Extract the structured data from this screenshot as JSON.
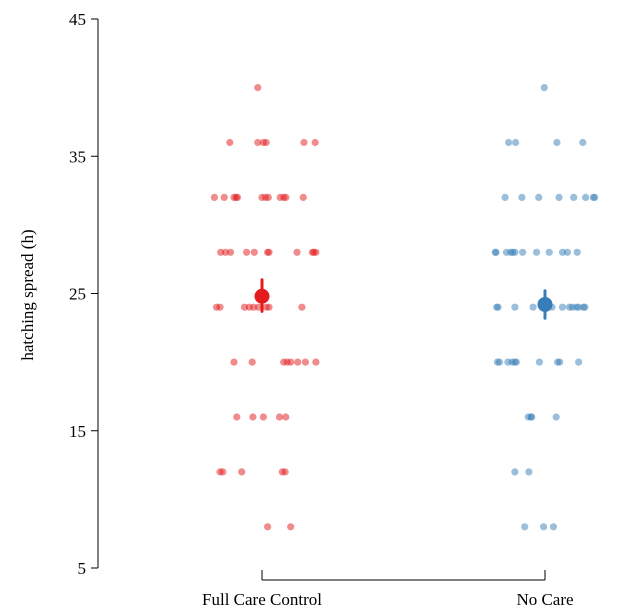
{
  "chart_data": {
    "type": "scatter",
    "title": "",
    "xlabel": "",
    "ylabel": "hatching spread (h)",
    "ylim": [
      5,
      45
    ],
    "yticks": [
      5,
      15,
      25,
      35,
      45
    ],
    "categories": [
      "Full Care Control",
      "No Care"
    ],
    "grid": false,
    "series": [
      {
        "category": "Full Care Control",
        "color": "#e41a1c",
        "mean": 24.8,
        "ci": [
          23.7,
          26.0
        ],
        "points": [
          {
            "dx": -0.06,
            "y": 40
          },
          {
            "dx": -0.46,
            "y": 36
          },
          {
            "dx": -0.06,
            "y": 36
          },
          {
            "dx": 0.02,
            "y": 36
          },
          {
            "dx": 0.06,
            "y": 36
          },
          {
            "dx": 0.6,
            "y": 36
          },
          {
            "dx": 0.76,
            "y": 36
          },
          {
            "dx": -0.68,
            "y": 32
          },
          {
            "dx": -0.54,
            "y": 32
          },
          {
            "dx": -0.4,
            "y": 32
          },
          {
            "dx": -0.37,
            "y": 32
          },
          {
            "dx": -0.35,
            "y": 32
          },
          {
            "dx": 0.0,
            "y": 32
          },
          {
            "dx": 0.05,
            "y": 32
          },
          {
            "dx": 0.09,
            "y": 32
          },
          {
            "dx": 0.26,
            "y": 32
          },
          {
            "dx": 0.31,
            "y": 32
          },
          {
            "dx": 0.34,
            "y": 32
          },
          {
            "dx": 0.59,
            "y": 32
          },
          {
            "dx": -0.59,
            "y": 28
          },
          {
            "dx": -0.52,
            "y": 28
          },
          {
            "dx": -0.45,
            "y": 28
          },
          {
            "dx": -0.22,
            "y": 28
          },
          {
            "dx": -0.11,
            "y": 28
          },
          {
            "dx": 0.08,
            "y": 28
          },
          {
            "dx": 0.1,
            "y": 28
          },
          {
            "dx": 0.5,
            "y": 28
          },
          {
            "dx": 0.72,
            "y": 28
          },
          {
            "dx": 0.74,
            "y": 28
          },
          {
            "dx": 0.77,
            "y": 28
          },
          {
            "dx": -0.65,
            "y": 24
          },
          {
            "dx": -0.6,
            "y": 24
          },
          {
            "dx": -0.25,
            "y": 24
          },
          {
            "dx": -0.18,
            "y": 24
          },
          {
            "dx": -0.12,
            "y": 24
          },
          {
            "dx": -0.05,
            "y": 24
          },
          {
            "dx": 0.06,
            "y": 24
          },
          {
            "dx": 0.1,
            "y": 24
          },
          {
            "dx": 0.57,
            "y": 24
          },
          {
            "dx": -0.4,
            "y": 20
          },
          {
            "dx": -0.14,
            "y": 20
          },
          {
            "dx": 0.31,
            "y": 20
          },
          {
            "dx": 0.36,
            "y": 20
          },
          {
            "dx": 0.41,
            "y": 20
          },
          {
            "dx": 0.51,
            "y": 20
          },
          {
            "dx": 0.62,
            "y": 20
          },
          {
            "dx": 0.77,
            "y": 20
          },
          {
            "dx": -0.36,
            "y": 16
          },
          {
            "dx": -0.13,
            "y": 16
          },
          {
            "dx": 0.02,
            "y": 16
          },
          {
            "dx": 0.25,
            "y": 16
          },
          {
            "dx": 0.34,
            "y": 16
          },
          {
            "dx": -0.6,
            "y": 12
          },
          {
            "dx": -0.56,
            "y": 12
          },
          {
            "dx": -0.29,
            "y": 12
          },
          {
            "dx": 0.29,
            "y": 12
          },
          {
            "dx": 0.33,
            "y": 12
          },
          {
            "dx": 0.08,
            "y": 8
          },
          {
            "dx": 0.41,
            "y": 8
          }
        ]
      },
      {
        "category": "No Care",
        "color": "#377eb8",
        "mean": 24.2,
        "ci": [
          23.2,
          25.2
        ],
        "points": [
          {
            "dx": -0.01,
            "y": 40
          },
          {
            "dx": -0.52,
            "y": 36
          },
          {
            "dx": -0.42,
            "y": 36
          },
          {
            "dx": 0.17,
            "y": 36
          },
          {
            "dx": 0.54,
            "y": 36
          },
          {
            "dx": -0.57,
            "y": 32
          },
          {
            "dx": -0.33,
            "y": 32
          },
          {
            "dx": -0.09,
            "y": 32
          },
          {
            "dx": 0.2,
            "y": 32
          },
          {
            "dx": 0.41,
            "y": 32
          },
          {
            "dx": 0.58,
            "y": 32
          },
          {
            "dx": 0.69,
            "y": 32
          },
          {
            "dx": 0.71,
            "y": 32
          },
          {
            "dx": -0.71,
            "y": 28
          },
          {
            "dx": -0.7,
            "y": 28
          },
          {
            "dx": -0.55,
            "y": 28
          },
          {
            "dx": -0.49,
            "y": 28
          },
          {
            "dx": -0.46,
            "y": 28
          },
          {
            "dx": -0.43,
            "y": 28
          },
          {
            "dx": -0.32,
            "y": 28
          },
          {
            "dx": -0.12,
            "y": 28
          },
          {
            "dx": 0.06,
            "y": 28
          },
          {
            "dx": 0.25,
            "y": 28
          },
          {
            "dx": 0.32,
            "y": 28
          },
          {
            "dx": 0.46,
            "y": 28
          },
          {
            "dx": -0.69,
            "y": 24
          },
          {
            "dx": -0.67,
            "y": 24
          },
          {
            "dx": -0.43,
            "y": 24
          },
          {
            "dx": -0.17,
            "y": 24
          },
          {
            "dx": 0.1,
            "y": 24
          },
          {
            "dx": 0.25,
            "y": 24
          },
          {
            "dx": 0.35,
            "y": 24
          },
          {
            "dx": 0.39,
            "y": 24
          },
          {
            "dx": 0.45,
            "y": 24
          },
          {
            "dx": 0.48,
            "y": 24
          },
          {
            "dx": 0.55,
            "y": 24
          },
          {
            "dx": 0.57,
            "y": 24
          },
          {
            "dx": -0.68,
            "y": 20
          },
          {
            "dx": -0.65,
            "y": 20
          },
          {
            "dx": -0.53,
            "y": 20
          },
          {
            "dx": -0.47,
            "y": 20
          },
          {
            "dx": -0.41,
            "y": 20
          },
          {
            "dx": -0.43,
            "y": 20
          },
          {
            "dx": -0.08,
            "y": 20
          },
          {
            "dx": 0.18,
            "y": 20
          },
          {
            "dx": 0.21,
            "y": 20
          },
          {
            "dx": 0.48,
            "y": 20
          },
          {
            "dx": -0.24,
            "y": 16
          },
          {
            "dx": -0.2,
            "y": 16
          },
          {
            "dx": -0.19,
            "y": 16
          },
          {
            "dx": 0.16,
            "y": 16
          },
          {
            "dx": -0.43,
            "y": 12
          },
          {
            "dx": -0.23,
            "y": 12
          },
          {
            "dx": -0.29,
            "y": 8
          },
          {
            "dx": -0.02,
            "y": 8
          },
          {
            "dx": 0.12,
            "y": 8
          }
        ]
      }
    ]
  }
}
